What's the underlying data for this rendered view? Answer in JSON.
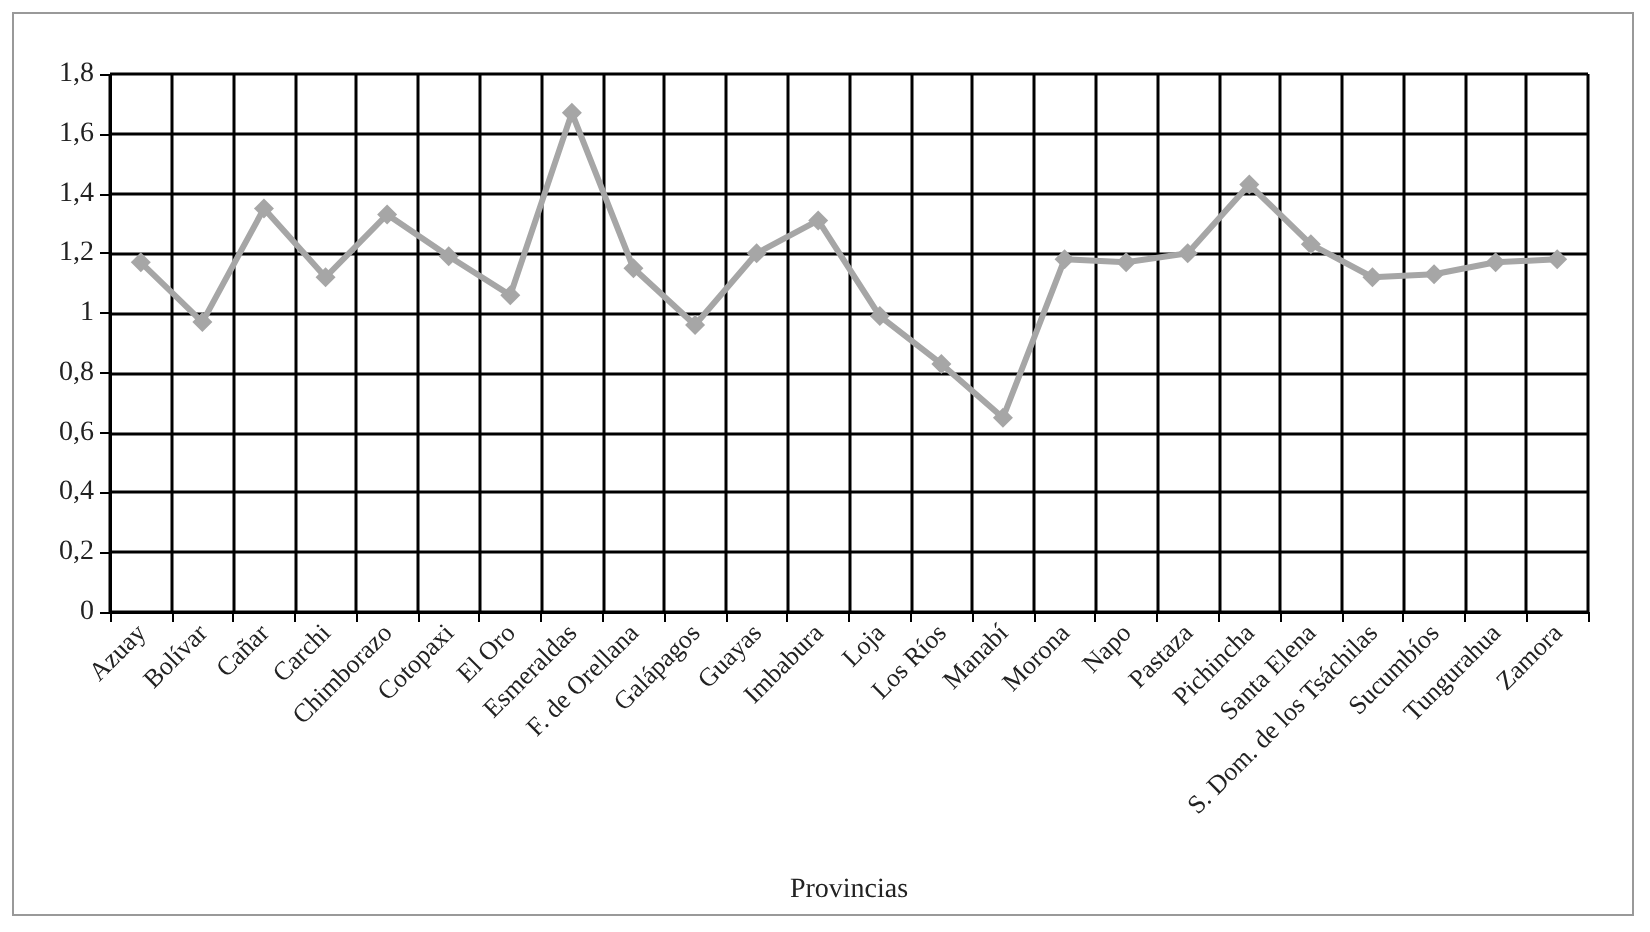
{
  "chart_data": {
    "type": "line",
    "xlabel": "Provincias",
    "categories": [
      "Azuay",
      "Bolívar",
      "Cañar",
      "Carchi",
      "Chimborazo",
      "Cotopaxi",
      "El Oro",
      "Esmeraldas",
      "F. de Orellana",
      "Galápagos",
      "Guayas",
      "Imbabura",
      "Loja",
      "Los Ríos",
      "Manabí",
      "Morona",
      "Napo",
      "Pastaza",
      "Pichincha",
      "Santa Elena",
      "S. Dom. de los Tsáchilas",
      "Sucumbíos",
      "Tungurahua",
      "Zamora"
    ],
    "series": [
      {
        "color": "#a6a6a6",
        "values": [
          1.17,
          0.97,
          1.35,
          1.12,
          1.33,
          1.19,
          1.06,
          1.67,
          1.15,
          0.96,
          1.2,
          1.31,
          0.99,
          0.83,
          0.65,
          1.18,
          1.17,
          1.2,
          1.43,
          1.23,
          1.12,
          1.13,
          1.17,
          1.18
        ]
      }
    ],
    "ylim": [
      0,
      1.8
    ],
    "yticks": [
      0,
      {
        "value": 0.2,
        "label": "0,2"
      },
      {
        "value": 0.4,
        "label": "0,4"
      },
      {
        "value": 0.6,
        "label": "0,6"
      },
      {
        "value": 0.8,
        "label": "0,8"
      },
      1,
      {
        "value": 1.2,
        "label": "1,2"
      },
      {
        "value": 1.4,
        "label": "1,4"
      },
      {
        "value": 1.6,
        "label": "1,6"
      },
      {
        "value": 1.8,
        "label": "1,8"
      }
    ],
    "grid": true,
    "marker": "diamond",
    "line_style": "solid"
  }
}
